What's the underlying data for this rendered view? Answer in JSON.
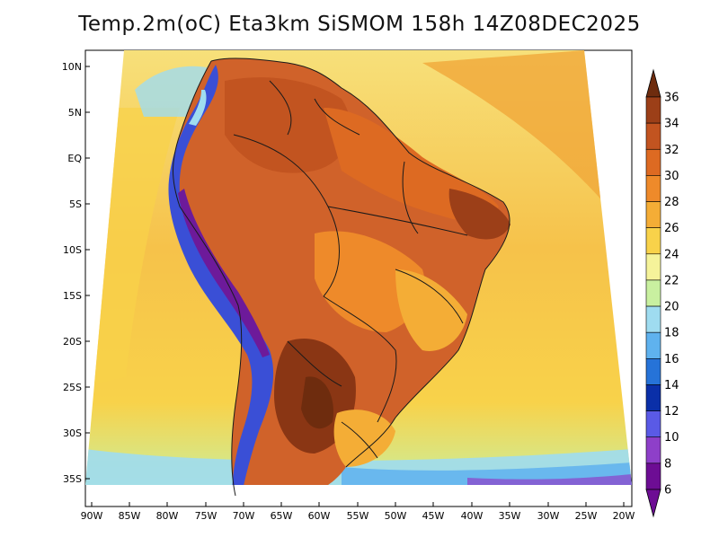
{
  "map": {
    "title": "Temp.2m(oC) Eta3km SiSMOM 158h 14Z08DEC2025",
    "variable": "Temp.2m",
    "units": "oC",
    "model": "Eta3km SiSMOM",
    "forecast_hour": "158h",
    "valid_time": "14Z08DEC2025",
    "region": "South America",
    "lat_labels": [
      "10N",
      "5N",
      "EQ",
      "5S",
      "10S",
      "15S",
      "20S",
      "25S",
      "30S",
      "35S"
    ],
    "lon_labels": [
      "90W",
      "85W",
      "80W",
      "75W",
      "70W",
      "65W",
      "60W",
      "55W",
      "50W",
      "45W",
      "40W",
      "35W",
      "30W",
      "25W",
      "20W"
    ]
  },
  "colorbar": {
    "levels": [
      "36",
      "34",
      "32",
      "30",
      "28",
      "26",
      "24",
      "22",
      "20",
      "18",
      "16",
      "14",
      "12",
      "10",
      "8",
      "6"
    ],
    "colors": [
      "#6e2c0e",
      "#9c3f18",
      "#c25420",
      "#dd6a22",
      "#ee8a2a",
      "#f4ad36",
      "#f8d24a",
      "#f5f39a",
      "#c9f0a0",
      "#9fdcf0",
      "#5fb2ee",
      "#2673d8",
      "#0a2fa8",
      "#5a5ae6",
      "#8e3fc9",
      "#6d0d94"
    ]
  },
  "palette": {
    "ocean": "#f6c24a",
    "ocean_warm": "#f0a83a",
    "ocean_cool": "#f7e07a",
    "land_hot": "#d0622a",
    "land_very_hot": "#8a3614",
    "andes_cold": "#3a4fd6",
    "andes_coldest": "#6d1a9a",
    "border": "#1a1a1a"
  }
}
